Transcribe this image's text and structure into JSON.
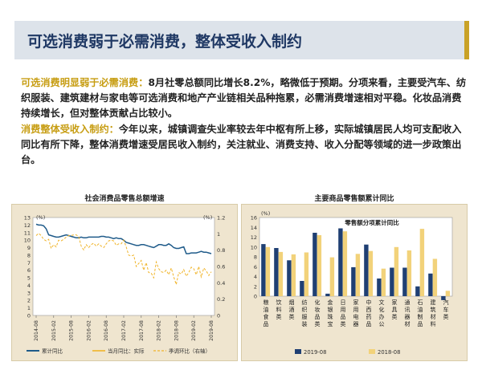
{
  "slide": {
    "title": "可选消费弱于必需消费，整体受收入制约",
    "para1_lead": "可选消费明显弱于必需消费：",
    "para1_text": "8月社零总额同比增长8.2%，略微低于预期。分项来看，主要受汽车、纺织服装、建筑建材与家电等可选消费和地产产业链相关品种拖累，必需消费增速相对平稳。化妆品消费持续增长，但对整体贡献占比较小。",
    "para2_lead": "消费整体受收入制约：",
    "para2_text": "今年以来，城镇调查失业率较去年中枢有所上移，实际城镇居民人均可支配收入同比有所下降，整体消费增速受居民收入制约，关注就业、消费支持、收入分配等领域的进一步政策出台。"
  },
  "colors": {
    "navy": "#1f3864",
    "gold": "#c79d12",
    "line_main": "#1f5b8a",
    "line_dash": "#f0b429",
    "bar_2019": "#1f3f73",
    "bar_2018": "#f2d27a",
    "chart_bg": "#efe5cf"
  },
  "chart_data": [
    {
      "type": "line",
      "title": "社会消费品零售总额增速",
      "left_unit": "(%)",
      "right_unit": "(%)",
      "y_left_ticks": [
        "0",
        "1",
        "2",
        "3",
        "4",
        "5",
        "6",
        "7",
        "8",
        "9",
        "10",
        "11",
        "12",
        "13"
      ],
      "y_right_ticks": [
        "0",
        "0.2",
        "0.4",
        "0.6",
        "0.8",
        "1",
        "1.2"
      ],
      "ylim_left": [
        0,
        13
      ],
      "ylim_right": [
        0,
        1.2
      ],
      "x_ticks": [
        "2014-08",
        "2015-02",
        "2015-08",
        "2016-02",
        "2016-08",
        "2017-02",
        "2017-08",
        "2018-02",
        "2018-08",
        "2019-02",
        "2019-08"
      ],
      "series": [
        {
          "name": "累计同比",
          "axis": "left",
          "values": [
            12.1,
            12.0,
            12.0,
            11.9,
            11.5,
            10.7,
            10.6,
            10.5,
            10.4,
            10.4,
            10.5,
            10.6,
            10.7,
            10.6,
            10.5,
            10.4,
            10.3,
            10.3,
            10.4,
            10.3,
            10.3,
            10.4,
            10.4,
            10.4,
            10.4,
            10.4,
            10.5,
            10.5,
            10.4,
            10.4,
            10.3,
            10.2,
            10.3,
            10.2,
            10.2,
            10.0,
            9.7,
            9.6,
            9.5,
            9.4,
            9.3,
            9.3,
            9.4,
            9.4,
            9.3,
            9.2,
            9.1,
            9.0,
            9.2,
            9.4,
            9.4,
            9.3,
            9.3,
            9.5,
            9.3,
            9.0,
            8.9,
            8.9,
            9.0,
            9.1,
            8.2,
            8.2,
            8.3,
            8.3,
            8.3,
            8.4,
            8.5,
            8.4,
            8.4,
            8.3,
            8.2
          ],
          "dashed": false
        },
        {
          "name": "当月同比：实际",
          "axis": "left",
          "values": [
            10.6,
            10.9,
            10.6,
            10.1,
            9.9,
            10.1,
            8.9,
            9.4,
            9.1,
            10.0,
            9.9,
            10.1,
            10.4,
            10.6,
            10.6,
            10.7,
            10.7,
            10.5,
            9.2,
            8.7,
            9.4,
            9.0,
            9.4,
            9.6,
            9.2,
            9.5,
            9.2,
            9.0,
            9.5,
            9.9,
            10.0,
            9.9,
            9.3,
            9.5,
            9.5,
            10.0,
            9.1,
            8.0,
            7.9,
            8.0,
            6.5,
            6.9,
            7.3,
            6.0,
            7.0,
            5.7,
            5.6,
            5.0,
            7.1,
            6.2,
            5.8,
            5.7,
            6.0,
            5.4,
            6.3,
            5.1,
            4.1,
            5.7,
            5.5,
            6.1,
            5.2,
            5.7,
            6.4,
            6.2,
            5.4,
            6.5,
            5.1,
            6.3,
            5.9,
            5.3,
            5.8
          ],
          "dashed": true
        }
      ],
      "legend": [
        "累计同比",
        "当月同比：实际",
        "季调环比（右轴）"
      ]
    },
    {
      "type": "bar",
      "title": "主要商品零售额累计同比",
      "inner_title": "零售额分项累计同比",
      "unit": "(%)",
      "ylim": [
        0,
        16
      ],
      "y_ticks": [
        "0",
        "2",
        "4",
        "6",
        "8",
        "10",
        "12",
        "14",
        "16"
      ],
      "categories": [
        "粮油食品",
        "饮料类",
        "烟酒类",
        "纺织服装",
        "化妆品类",
        "金银珠宝",
        "日用品类",
        "家用电器",
        "中西药品",
        "文化办公",
        "家具类",
        "通讯器材",
        "石油制品",
        "建筑材料",
        "汽车类"
      ],
      "series": [
        {
          "name": "2019-08",
          "values": [
            10.6,
            9.8,
            7.3,
            3.1,
            12.9,
            0.5,
            13.8,
            5.9,
            10.5,
            3.6,
            5.8,
            5.8,
            2.0,
            4.6,
            -0.8
          ]
        },
        {
          "name": "2018-08",
          "values": [
            10.0,
            9.0,
            8.5,
            8.9,
            12.4,
            7.9,
            13.2,
            8.6,
            9.2,
            5.6,
            10.0,
            9.3,
            13.7,
            7.6,
            1.1
          ]
        }
      ],
      "legend": [
        "2019-08",
        "2018-08"
      ]
    }
  ]
}
